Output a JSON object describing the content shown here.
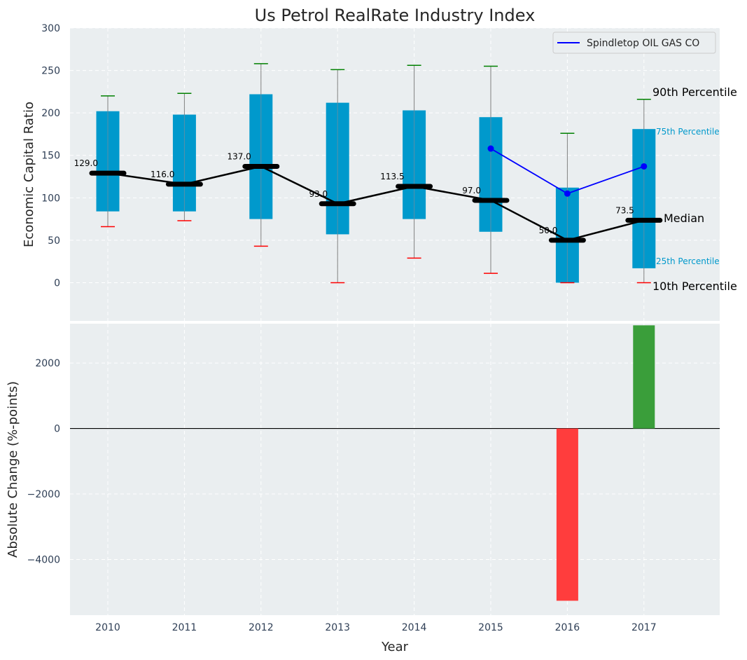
{
  "chart_data": [
    {
      "type": "box",
      "title": "Us Petrol RealRate Industry Index",
      "xlabel": "Year",
      "ylabel": "Economic Capital Ratio",
      "ylim": [
        -45,
        300
      ],
      "yticks": [
        0,
        50,
        100,
        150,
        200,
        250,
        300
      ],
      "categories": [
        "2010",
        "2011",
        "2012",
        "2013",
        "2014",
        "2015",
        "2016",
        "2017"
      ],
      "p10": [
        66,
        73,
        43,
        0,
        29,
        11,
        0,
        0
      ],
      "p25": [
        84,
        84,
        75,
        57,
        75,
        60,
        0,
        17
      ],
      "median": [
        129.0,
        116.0,
        137.0,
        93.0,
        113.5,
        97.0,
        50.0,
        73.5
      ],
      "median_labels": [
        "129.0",
        "116.0",
        "137.0",
        "93.0",
        "113.5",
        "97.0",
        "50.0",
        "73.5"
      ],
      "p75": [
        202,
        198,
        222,
        212,
        203,
        195,
        112,
        181
      ],
      "p90": [
        220,
        223,
        258,
        251,
        256,
        255,
        176,
        216
      ],
      "company_series": {
        "name": "Spindletop OIL GAS CO",
        "years": [
          "2015",
          "2016",
          "2017"
        ],
        "values": [
          158,
          105,
          137
        ],
        "color": "#0000ff"
      },
      "annotations": {
        "p90": "90th Percentile",
        "p75": "75th Percentile",
        "median": "Median",
        "p25": "25th Percentile",
        "p10": "10th Percentile"
      },
      "legend": "top-right",
      "colors": {
        "box": "#0099cc",
        "median": "#000000",
        "p90_cap": "#008000",
        "p10_cap": "#ff0000",
        "background": "#eaeef0"
      }
    },
    {
      "type": "bar",
      "xlabel": "Year",
      "ylabel": "Absolute Change (%-points)",
      "ylim": [
        -5700,
        3200
      ],
      "yticks": [
        -4000,
        -2000,
        0,
        2000
      ],
      "ytick_labels": [
        "−4000",
        "−2000",
        "0",
        "2000"
      ],
      "categories": [
        "2010",
        "2011",
        "2012",
        "2013",
        "2014",
        "2015",
        "2016",
        "2017"
      ],
      "values": [
        0,
        0,
        0,
        0,
        0,
        0,
        -5260,
        3150
      ],
      "colors": {
        "positive": "#3a9e3a",
        "negative": "#ff3d3d"
      }
    }
  ]
}
